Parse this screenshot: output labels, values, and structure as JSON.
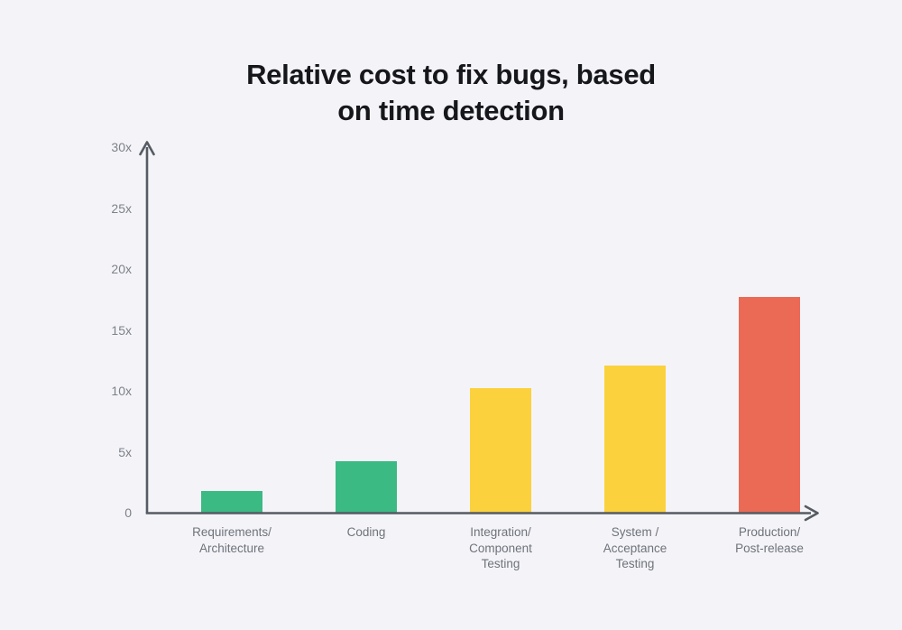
{
  "chart_data": {
    "type": "bar",
    "title": "Relative cost to fix bugs, based on time detection",
    "title_lines": [
      "Relative cost to fix bugs, based",
      "on time detection"
    ],
    "categories": [
      "Requirements/\nArchitecture",
      "Coding",
      "Integration/\nComponent\nTesting",
      "System /\nAcceptance\nTesting",
      "Production/\nPost-release"
    ],
    "values": [
      1.8,
      4.2,
      10.2,
      12.1,
      17.7
    ],
    "value_unit": "x",
    "bar_colors": [
      "#3bba84",
      "#3bba84",
      "#fbd23d",
      "#fbd23d",
      "#ea6a56"
    ],
    "yticks": [
      "0",
      "5x",
      "10x",
      "15x",
      "20x",
      "25x",
      "30x"
    ],
    "ytick_values": [
      0,
      5,
      10,
      15,
      20,
      25,
      30
    ],
    "ylim": [
      0,
      30
    ],
    "xlabel": "",
    "ylabel": "",
    "grid": false,
    "legend": "none",
    "colors": {
      "background": "#f4f4f8",
      "axis": "#565b63",
      "tick_label": "#7d818a",
      "category_label": "#6e727b",
      "title": "#16171a",
      "green": "#3bba84",
      "yellow": "#fbd23d",
      "red": "#ea6a56"
    }
  }
}
